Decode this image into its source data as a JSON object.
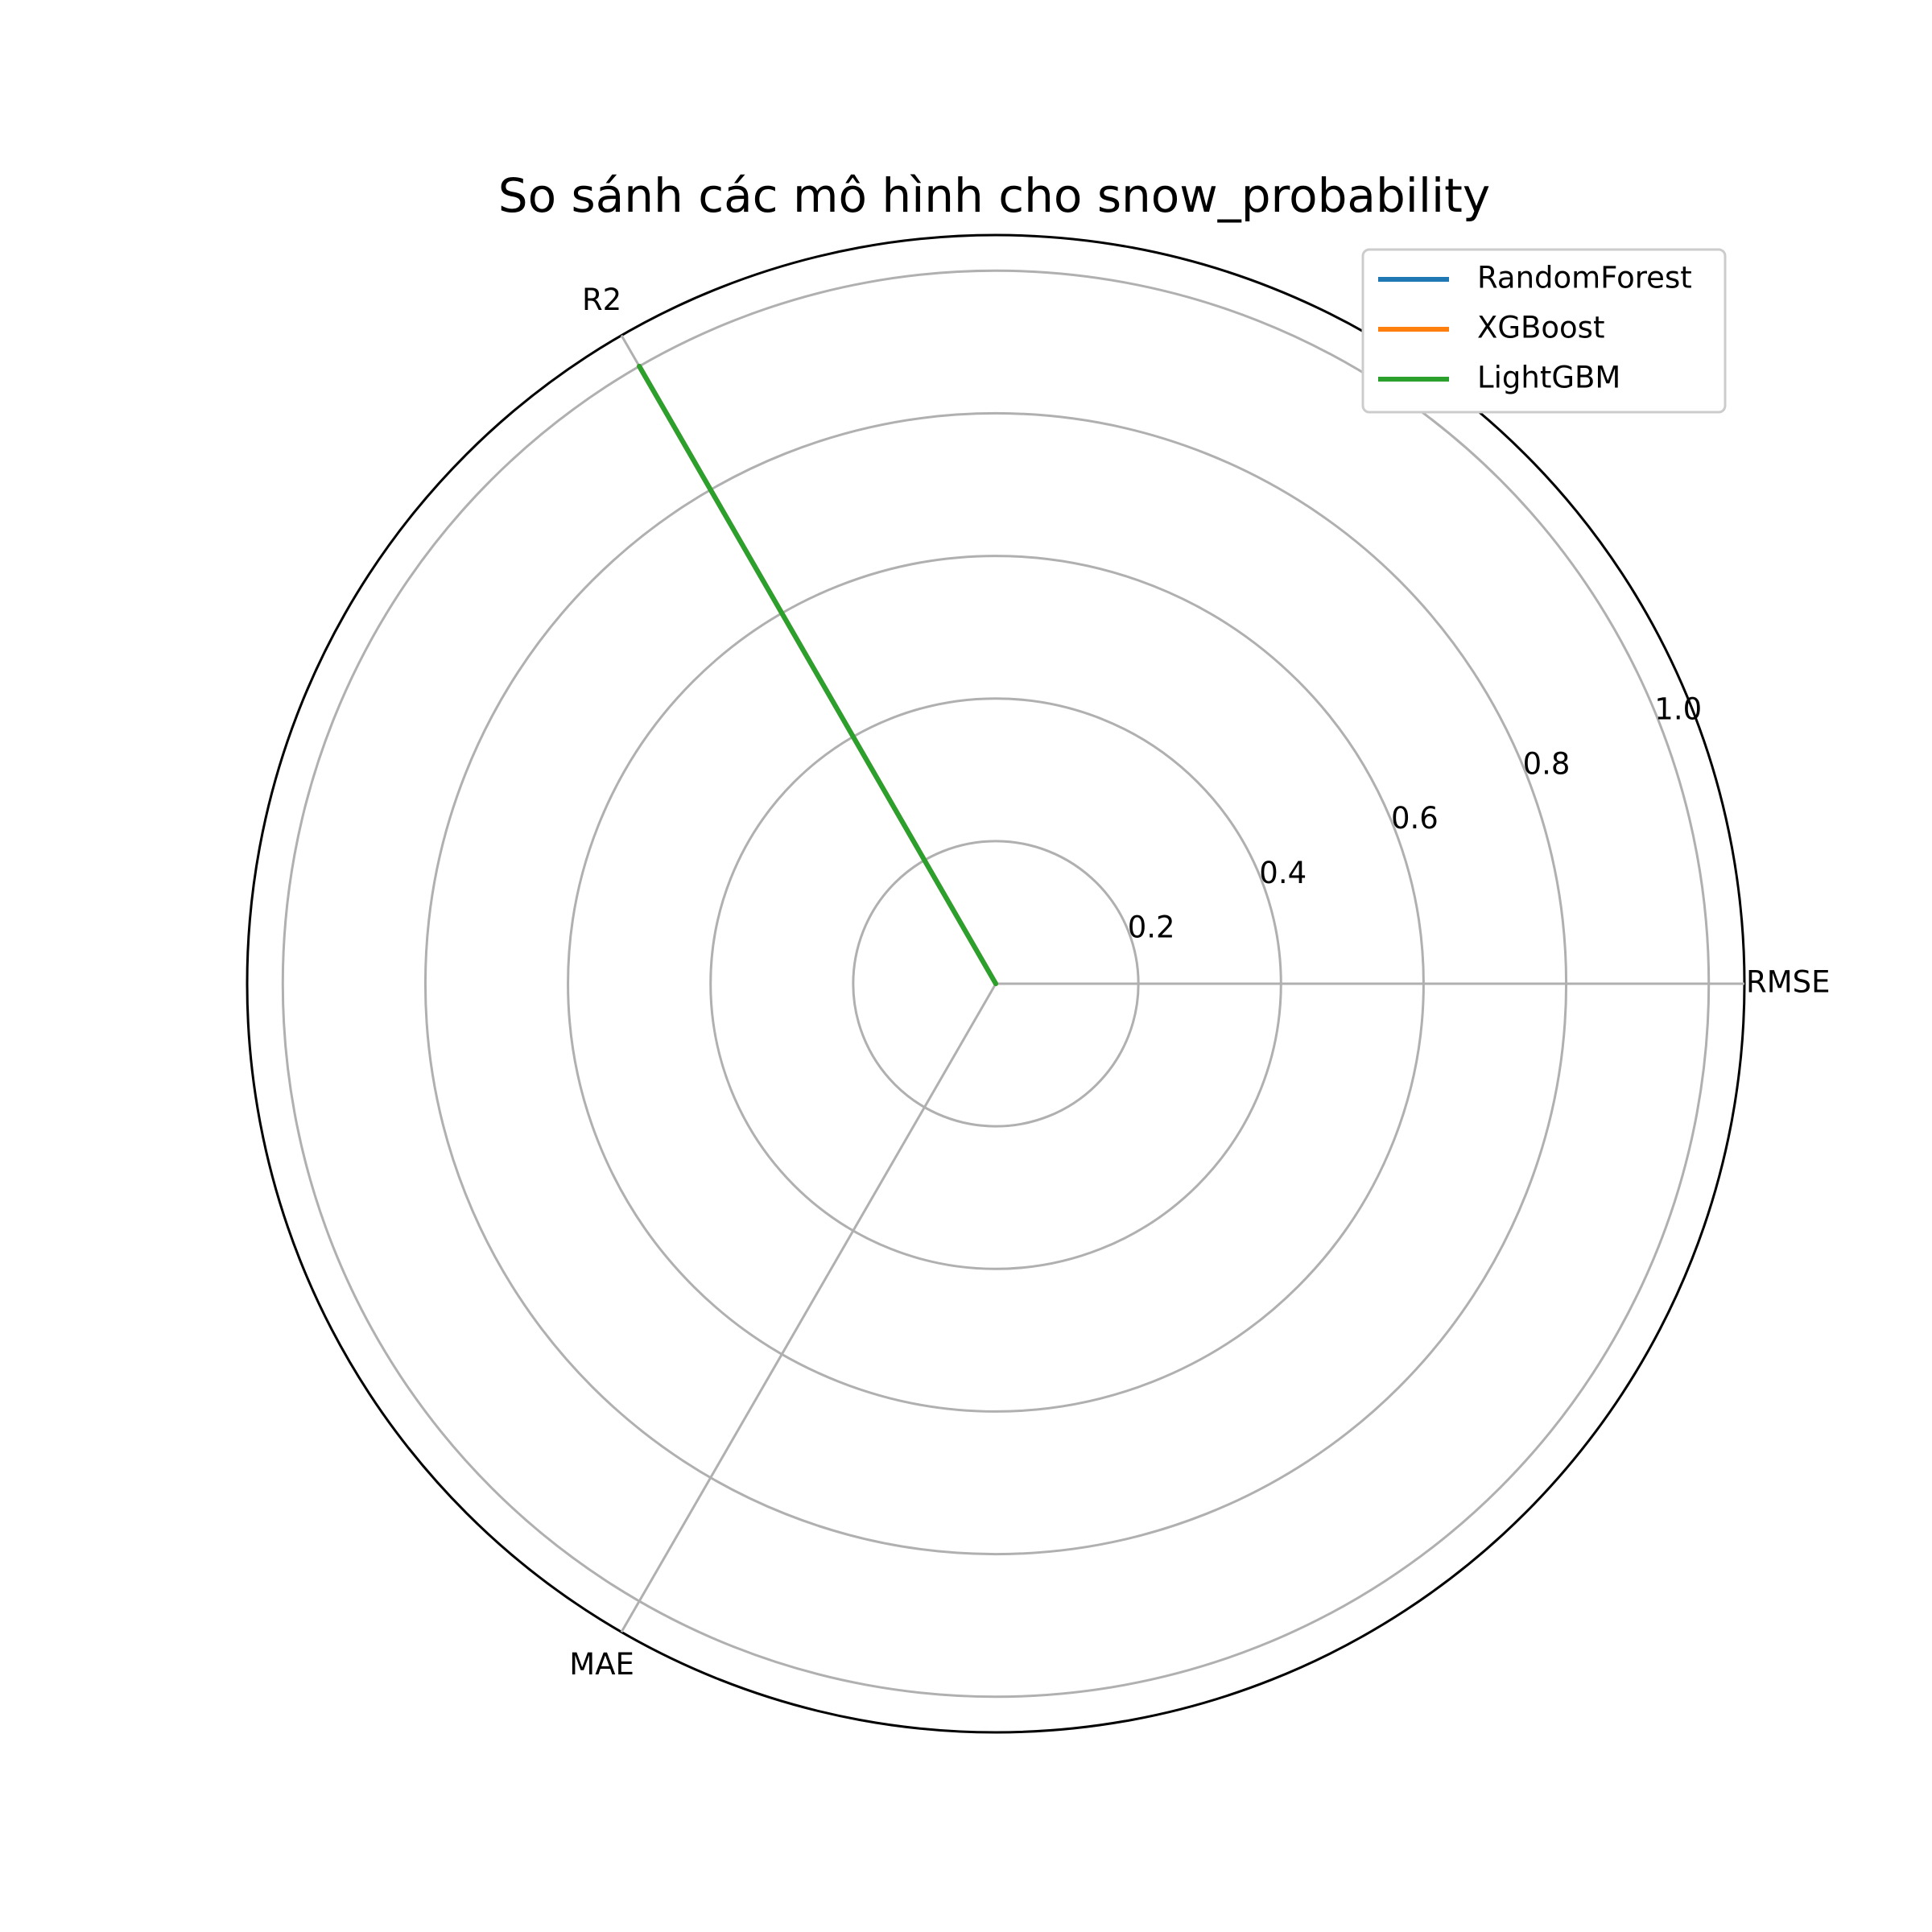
{
  "chart_data": {
    "type": "radar",
    "title": "So sánh các mô hình cho snow_probability",
    "axes": [
      "RMSE",
      "R2",
      "MAE"
    ],
    "rlim": [
      0,
      1.05
    ],
    "r_ticks": [
      0.2,
      0.4,
      0.6,
      0.8,
      1.0
    ],
    "r_tick_labels": [
      "0.2",
      "0.4",
      "0.6",
      "0.8",
      "1.0"
    ],
    "grid": true,
    "legend_position": "top-right",
    "series": [
      {
        "name": "RandomForest",
        "color": "#1f77b4",
        "values": [
          0.0,
          1.0,
          0.0
        ]
      },
      {
        "name": "XGBoost",
        "color": "#ff7f0e",
        "values": [
          0.0,
          1.0,
          0.0
        ]
      },
      {
        "name": "LightGBM",
        "color": "#2ca02c",
        "values": [
          0.0,
          1.0,
          0.0
        ]
      }
    ]
  }
}
